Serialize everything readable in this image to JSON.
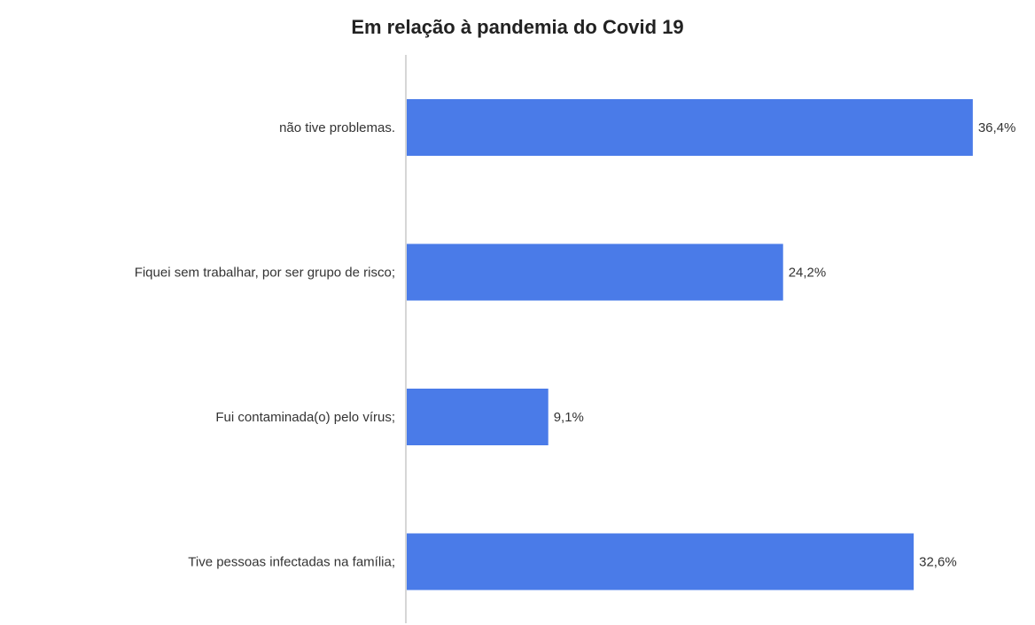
{
  "chart_data": {
    "type": "bar",
    "orientation": "horizontal",
    "title": "Em relação à pandemia do Covid 19",
    "categories": [
      "não tive problemas.",
      "Fiquei sem trabalhar, por ser grupo de risco;",
      "Fui contaminada(o) pelo vírus;",
      "Tive pessoas infectadas na família;"
    ],
    "values": [
      36.4,
      24.2,
      9.1,
      32.6
    ],
    "data_labels": [
      "36,4%",
      "24,2%",
      "9,1%",
      "32,6%"
    ],
    "unit": "%",
    "xlim": [
      0,
      40
    ],
    "xlabel": "",
    "ylabel": "",
    "grid": false,
    "legend": "none",
    "bar_color": "#4a7be8",
    "axis_color": "#c8c8c8"
  }
}
